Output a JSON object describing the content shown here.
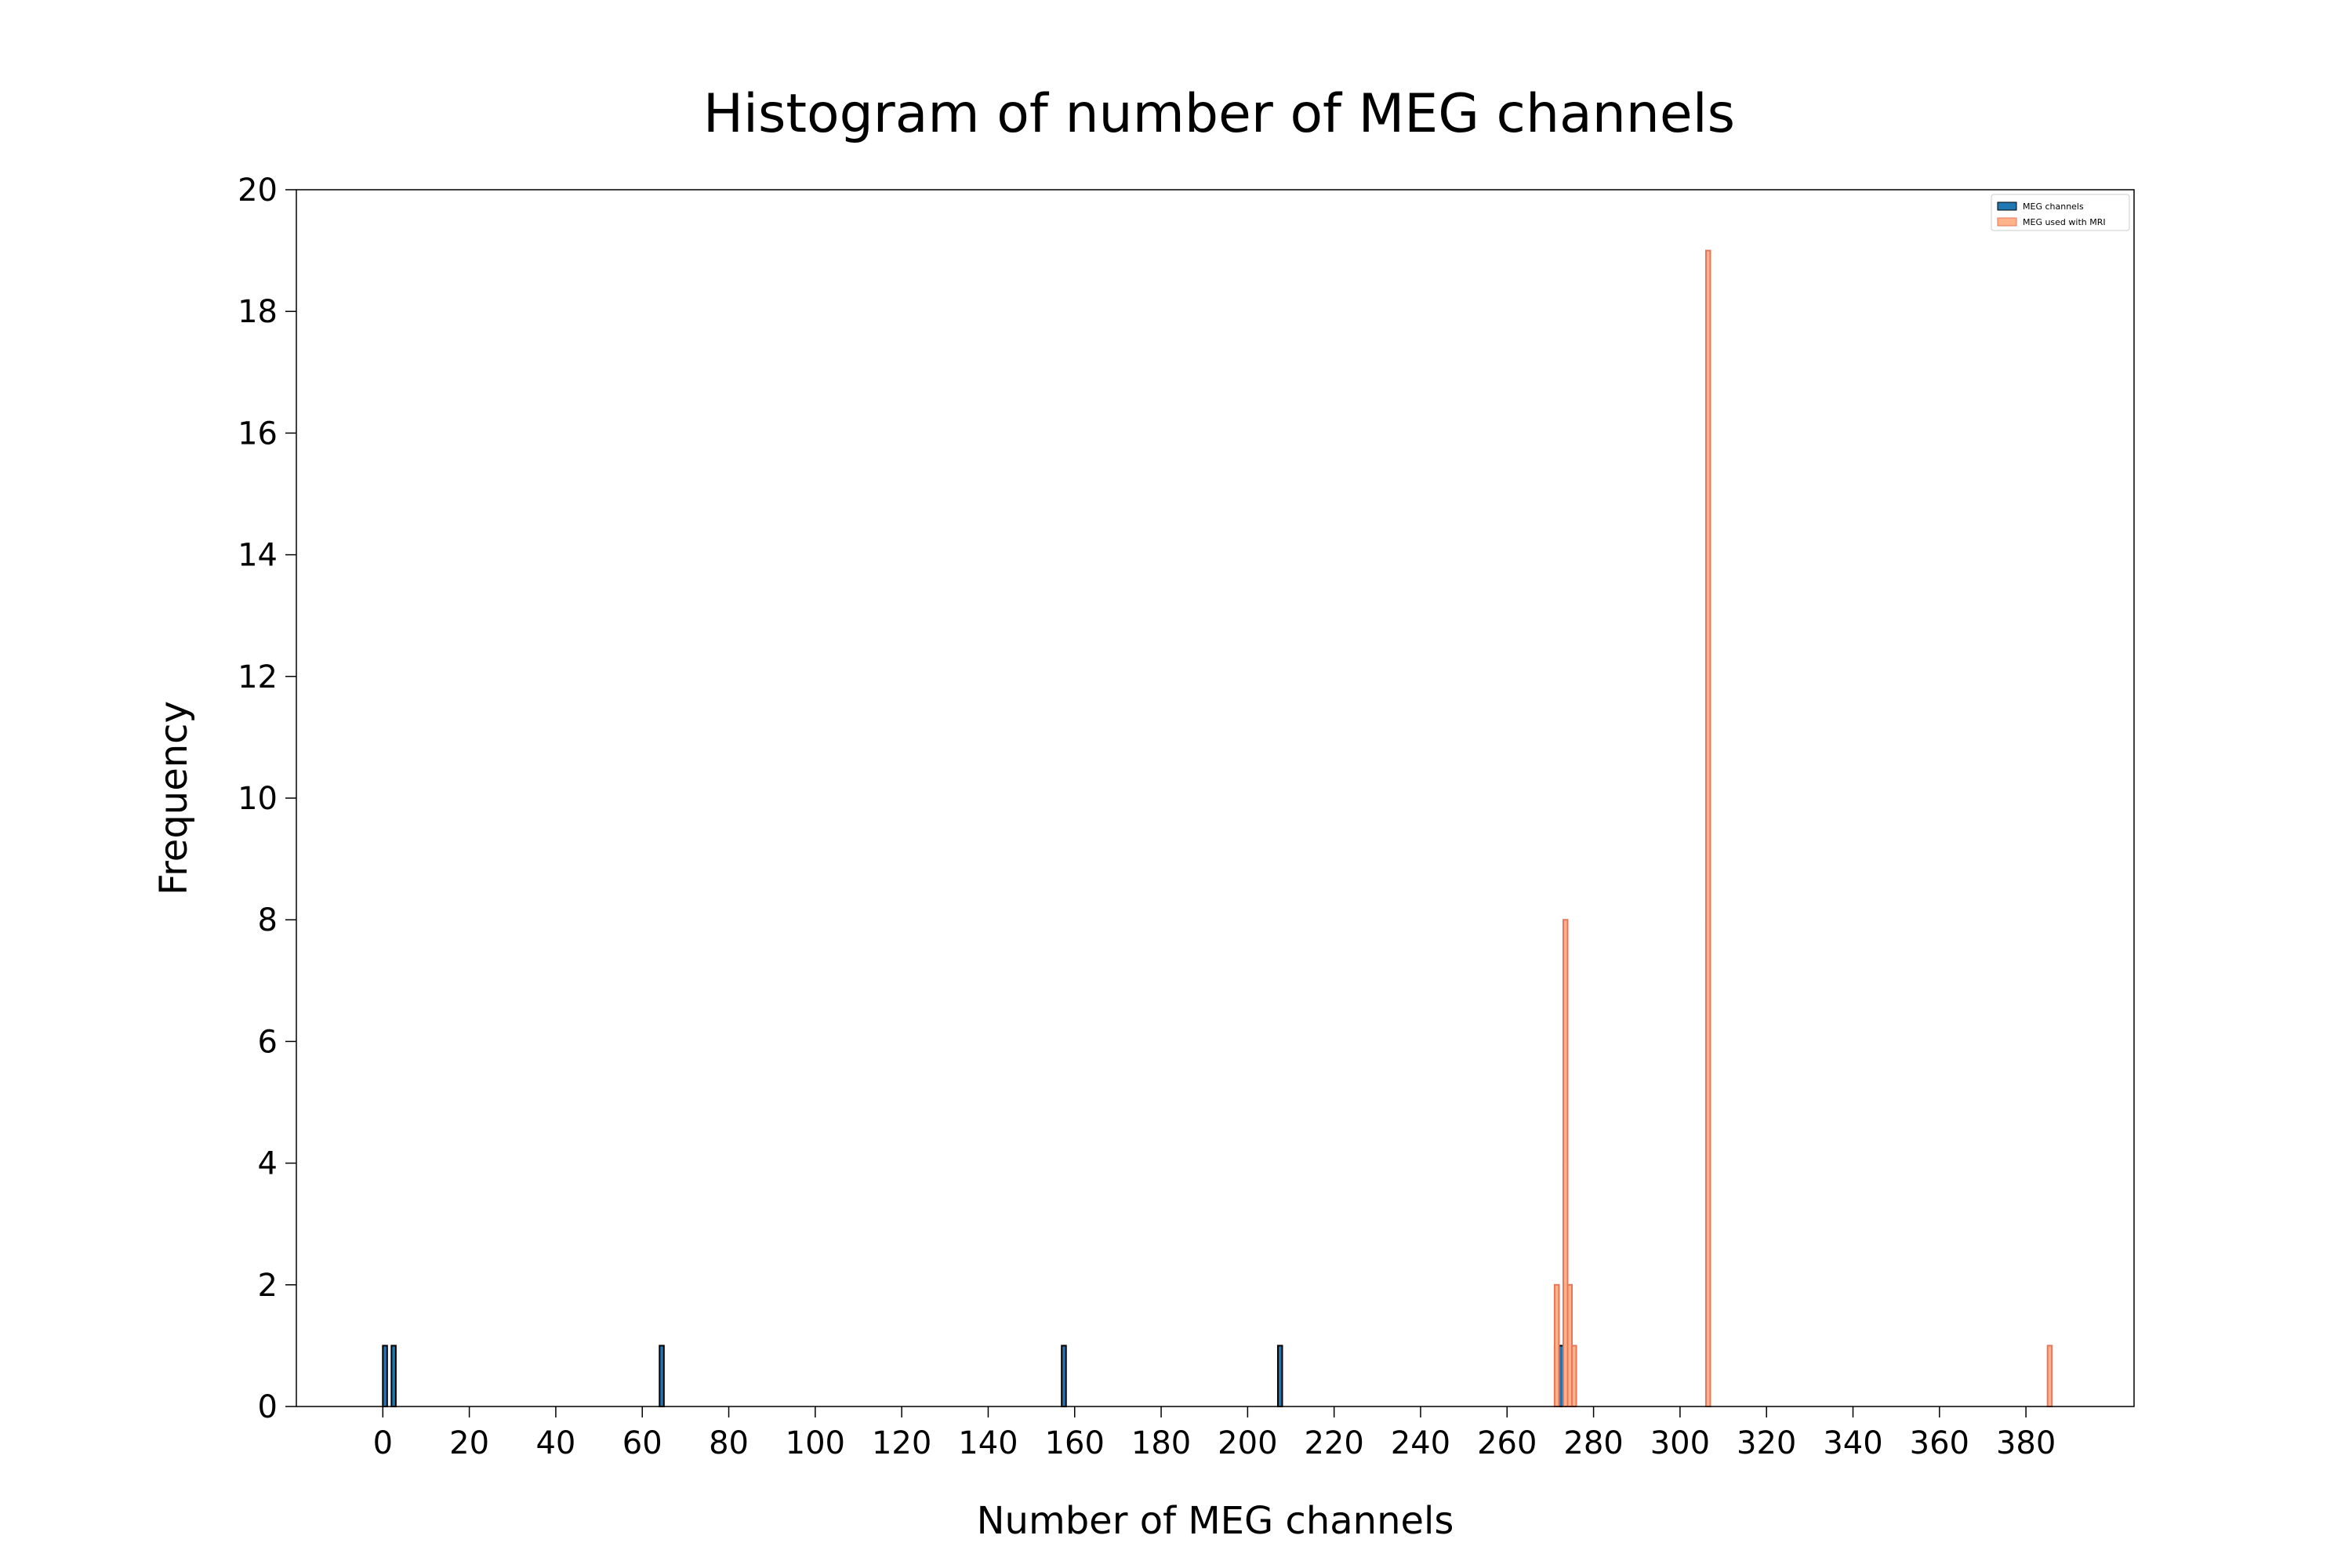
{
  "chart_data": {
    "type": "bar",
    "title": "Histogram of number of MEG channels",
    "xlabel": "Number of MEG channels",
    "ylabel": "Frequency",
    "xlim": [
      -20,
      405
    ],
    "ylim": [
      0,
      20
    ],
    "xticks": [
      0,
      20,
      40,
      60,
      80,
      100,
      120,
      140,
      160,
      180,
      200,
      220,
      240,
      260,
      280,
      300,
      320,
      340,
      360,
      380
    ],
    "yticks": [
      0,
      2,
      4,
      6,
      8,
      10,
      12,
      14,
      16,
      18,
      20
    ],
    "bin_width": 1,
    "grid": false,
    "legend_position": "top-right",
    "series": [
      {
        "name": "MEG channels",
        "color": "#1f77b4",
        "edgecolor": "#000000",
        "x": [
          0,
          2,
          64,
          157,
          207,
          271,
          272,
          273,
          274,
          306
        ],
        "values": [
          1,
          1,
          1,
          1,
          1,
          1,
          1,
          4,
          1,
          8
        ]
      },
      {
        "name": "MEG used with MRI",
        "color": "#ffb38a",
        "edgecolor": "#e8765a",
        "x": [
          271,
          273,
          274,
          275,
          306,
          385
        ],
        "values": [
          2,
          8,
          2,
          1,
          19,
          1
        ]
      }
    ]
  }
}
